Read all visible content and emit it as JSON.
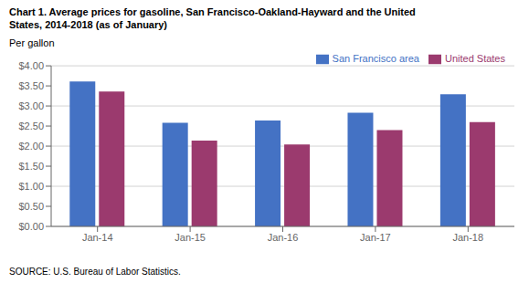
{
  "chart_data": {
    "type": "bar",
    "title": "Chart 1. Average prices for gasoline, San Francisco-Oakland-Hayward and the United",
    "subtitle": "States, 2014-2018  (as of January)",
    "ylabel": "Per gallon",
    "annotations": [
      "SOURCE: U.S. Bureau of Labor Statistics."
    ],
    "categories": [
      "Jan-14",
      "Jan-15",
      "Jan-16",
      "Jan-17",
      "Jan-18"
    ],
    "series": [
      {
        "name": "San Francisco area",
        "color": "#4472C4",
        "values": [
          3.61,
          2.58,
          2.64,
          2.83,
          3.29
        ]
      },
      {
        "name": "United States",
        "color": "#9B3A6E",
        "values": [
          3.36,
          2.14,
          2.04,
          2.4,
          2.6
        ]
      }
    ],
    "ylim": [
      0.0,
      4.0
    ],
    "yticks": [
      {
        "value": 0.0,
        "label": "$0.00"
      },
      {
        "value": 0.5,
        "label": "$0.50"
      },
      {
        "value": 1.0,
        "label": "$1.00"
      },
      {
        "value": 1.5,
        "label": "$1.50"
      },
      {
        "value": 2.0,
        "label": "$2.00"
      },
      {
        "value": 2.5,
        "label": "$2.50"
      },
      {
        "value": 3.0,
        "label": "$3.00"
      },
      {
        "value": 3.5,
        "label": "$3.50"
      },
      {
        "value": 4.0,
        "label": "$4.00"
      }
    ],
    "grid": true,
    "legend": "upper right"
  }
}
